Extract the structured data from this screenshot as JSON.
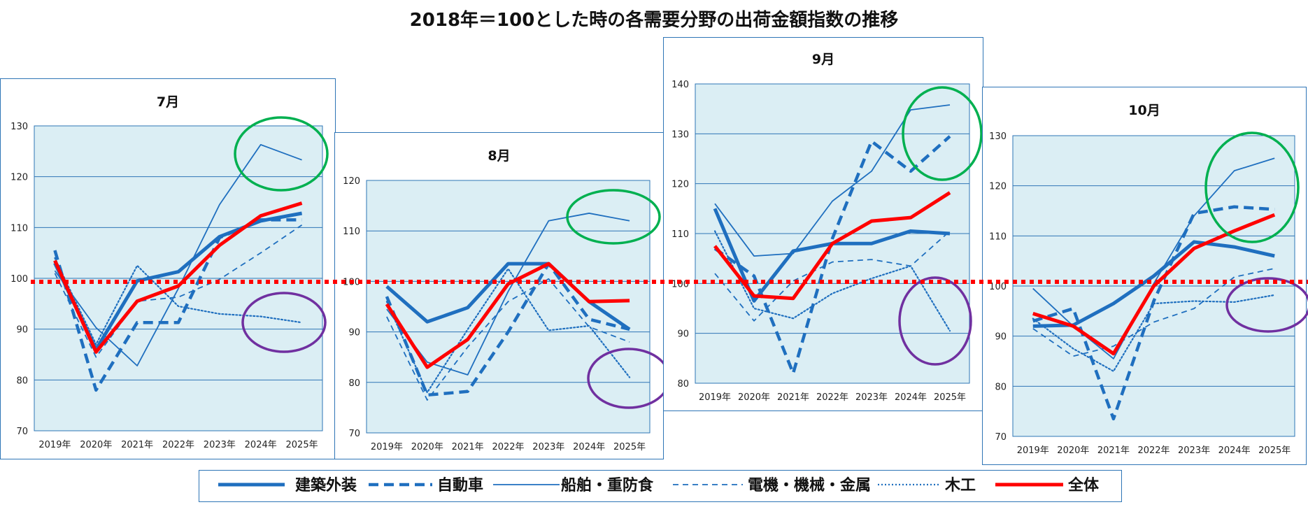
{
  "title": "2018年＝100とした時の各需要分野の出荷金額指数の推移",
  "legend": [
    {
      "key": "kenchiku",
      "label": "建築外装"
    },
    {
      "key": "jidosha",
      "label": "自動車"
    },
    {
      "key": "senpaku",
      "label": "船舶・重防食"
    },
    {
      "key": "denki",
      "label": "電機・機械・金属"
    },
    {
      "key": "mokko",
      "label": "木工"
    },
    {
      "key": "zentai",
      "label": "全体"
    }
  ],
  "colors": {
    "blue": "#1f6fbf",
    "red": "#ff0000",
    "plot_bg": "#dbeef4",
    "grid": "#2e75b6",
    "green": "#00b050",
    "purple": "#7030a0"
  },
  "reference_value": 100,
  "chart_data": [
    {
      "type": "line",
      "title": "7月",
      "categories": [
        "2019年",
        "2020年",
        "2021年",
        "2022年",
        "2023年",
        "2024年",
        "2025年"
      ],
      "ylim": [
        70,
        130
      ],
      "yticks": [
        70,
        80,
        90,
        100,
        110,
        120,
        130
      ],
      "series": [
        {
          "key": "kenchiku",
          "name": "建築外装",
          "values": [
            103,
            86,
            99.5,
            101.3,
            108.2,
            111.3,
            112.8
          ]
        },
        {
          "key": "jidosha",
          "name": "自動車",
          "values": [
            105.5,
            78,
            91.3,
            91.3,
            108,
            111.5,
            111.5
          ]
        },
        {
          "key": "senpaku",
          "name": "船舶・重防食",
          "values": [
            101.5,
            90.3,
            82.8,
            98,
            114.5,
            126.3,
            123.3
          ]
        },
        {
          "key": "denki",
          "name": "電機・機械・金属",
          "values": [
            101,
            84.5,
            95.5,
            96.3,
            99.8,
            105,
            110.5
          ]
        },
        {
          "key": "mokko",
          "name": "木工",
          "values": [
            104,
            87,
            102.5,
            94.5,
            93,
            92.5,
            91.3
          ]
        },
        {
          "key": "zentai",
          "name": "全体",
          "values": [
            103.5,
            85.5,
            95.5,
            98.5,
            106.5,
            112.3,
            114.8
          ]
        }
      ],
      "annotations": [
        {
          "shape": "ellipse",
          "color": "green",
          "around": "2024年–2025年",
          "value": 123
        },
        {
          "shape": "ellipse",
          "color": "purple",
          "around": "2024年–2025年",
          "value": 91.5
        }
      ]
    },
    {
      "type": "line",
      "title": "8月",
      "categories": [
        "2019年",
        "2020年",
        "2021年",
        "2022年",
        "2023年",
        "2024年",
        "2025年"
      ],
      "ylim": [
        70,
        120
      ],
      "yticks": [
        70,
        80,
        90,
        100,
        110,
        120
      ],
      "series": [
        {
          "key": "kenchiku",
          "name": "建築外装",
          "values": [
            99,
            92,
            94.8,
            103.5,
            103.5,
            96,
            90.5
          ]
        },
        {
          "key": "jidosha",
          "name": "自動車",
          "values": [
            97,
            77.5,
            78.2,
            90,
            103.5,
            92.5,
            90.5
          ]
        },
        {
          "key": "senpaku",
          "name": "船舶・重防食",
          "values": [
            94.5,
            84,
            81.5,
            98,
            112,
            113.5,
            112
          ]
        },
        {
          "key": "denki",
          "name": "電機・機械・金属",
          "values": [
            93,
            76.5,
            87,
            96,
            100.5,
            91,
            88
          ]
        },
        {
          "key": "mokko",
          "name": "木工",
          "values": [
            96,
            78,
            90.5,
            102.5,
            90.3,
            91.2,
            81
          ]
        },
        {
          "key": "zentai",
          "name": "全体",
          "values": [
            95.5,
            83,
            88.5,
            99.5,
            103.5,
            96,
            96.2
          ]
        }
      ],
      "annotations": [
        {
          "shape": "ellipse",
          "color": "green",
          "around": "2024年–2025年",
          "value": 112.5
        },
        {
          "shape": "ellipse",
          "color": "purple",
          "around": "2024年–2025年",
          "value": 80.5
        }
      ]
    },
    {
      "type": "line",
      "title": "9月",
      "categories": [
        "2019年",
        "2020年",
        "2021年",
        "2022年",
        "2023年",
        "2024年",
        "2025年"
      ],
      "ylim": [
        80,
        140
      ],
      "yticks": [
        80,
        90,
        100,
        110,
        120,
        130,
        140
      ],
      "series": [
        {
          "key": "kenchiku",
          "name": "建築外装",
          "values": [
            115,
            96.5,
            106.5,
            108,
            108,
            110.5,
            110
          ]
        },
        {
          "key": "jidosha",
          "name": "自動車",
          "values": [
            107,
            101.5,
            82,
            109,
            128.5,
            122.5,
            129.5
          ]
        },
        {
          "key": "senpaku",
          "name": "船舶・重防食",
          "values": [
            116,
            105.5,
            106,
            116.5,
            122.5,
            134.8,
            135.8
          ]
        },
        {
          "key": "denki",
          "name": "電機・機械・金属",
          "values": [
            102,
            92.5,
            100.5,
            104.3,
            104.8,
            103.5,
            110.5
          ]
        },
        {
          "key": "mokko",
          "name": "木工",
          "values": [
            110.5,
            95,
            93,
            98,
            101,
            103.5,
            90.5
          ]
        },
        {
          "key": "zentai",
          "name": "全体",
          "values": [
            107.5,
            97.5,
            97,
            108,
            112.5,
            113.2,
            118.2
          ]
        }
      ],
      "annotations": [
        {
          "shape": "ellipse",
          "color": "green",
          "around": "2024年–2025年",
          "value": 130
        },
        {
          "shape": "ellipse",
          "color": "purple",
          "around": "2024年–2025年",
          "value": 94
        }
      ]
    },
    {
      "type": "line",
      "title": "10月",
      "categories": [
        "2019年",
        "2020年",
        "2021年",
        "2022年",
        "2023年",
        "2024年",
        "2025年"
      ],
      "ylim": [
        70,
        130
      ],
      "yticks": [
        70,
        80,
        90,
        100,
        110,
        120,
        130
      ],
      "series": [
        {
          "key": "kenchiku",
          "name": "建築外装",
          "values": [
            92,
            92.2,
            96.5,
            102,
            108.8,
            107.8,
            106
          ]
        },
        {
          "key": "jidosha",
          "name": "自動車",
          "values": [
            93,
            95.5,
            73.5,
            97,
            114.5,
            115.8,
            115.3
          ]
        },
        {
          "key": "senpaku",
          "name": "船舶・重防食",
          "values": [
            99.5,
            92,
            85.5,
            100.5,
            114,
            123,
            125.5
          ]
        },
        {
          "key": "denki",
          "name": "電機・機械・金属",
          "values": [
            91.5,
            86,
            88,
            92.8,
            95.5,
            101.8,
            103.5
          ]
        },
        {
          "key": "mokko",
          "name": "木工",
          "values": [
            93.5,
            87.5,
            83,
            96.5,
            97,
            96.8,
            98.2
          ]
        },
        {
          "key": "zentai",
          "name": "全体",
          "values": [
            94.5,
            92,
            86.5,
            100,
            107.5,
            111,
            114.2
          ]
        }
      ],
      "annotations": [
        {
          "shape": "ellipse",
          "color": "green",
          "around": "2024年–2025年",
          "value": 119.5
        },
        {
          "shape": "ellipse",
          "color": "purple",
          "around": "2024年–2025年",
          "value": 97
        }
      ]
    }
  ]
}
